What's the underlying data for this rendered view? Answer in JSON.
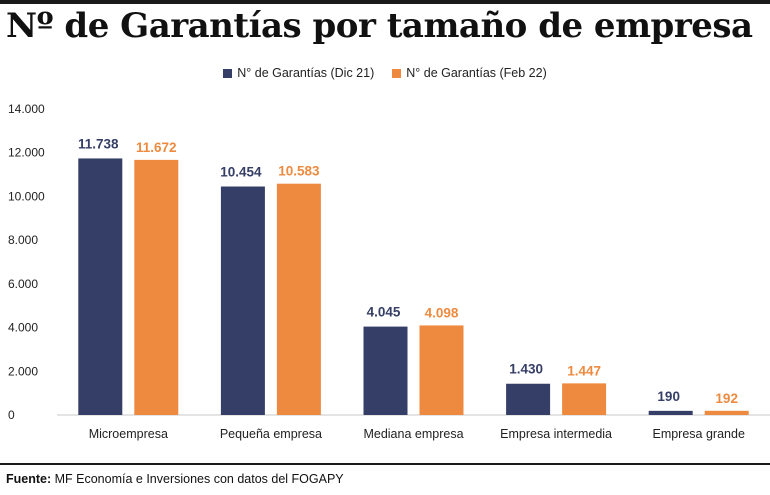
{
  "title": "Nº de Garantías por tamaño de empresa",
  "source": {
    "label": "Fuente:",
    "text": "MF Economía e Inversiones con datos del FOGAPY"
  },
  "colors": {
    "dic21": "#353e66",
    "feb22": "#ee8a3f"
  },
  "chart_data": {
    "type": "bar",
    "categories": [
      "Microempresa",
      "Pequeña empresa",
      "Mediana empresa",
      "Empresa intermedia",
      "Empresa grande"
    ],
    "series": [
      {
        "name": "N° de Garantías (Dic 21)",
        "values": [
          11738,
          10454,
          4045,
          1430,
          190
        ],
        "labels": [
          "11.738",
          "10.454",
          "4.045",
          "1.430",
          "190"
        ]
      },
      {
        "name": "N° de Garantías (Feb 22)",
        "values": [
          11672,
          10583,
          4098,
          1447,
          192
        ],
        "labels": [
          "11.672",
          "10.583",
          "4.098",
          "1.447",
          "192"
        ]
      }
    ],
    "ylim": [
      0,
      14000
    ],
    "yticks": [
      0,
      2000,
      4000,
      6000,
      8000,
      10000,
      12000,
      14000
    ],
    "ytick_labels": [
      "0",
      "2.000",
      "4.000",
      "6.000",
      "8.000",
      "10.000",
      "12.000",
      "14.000"
    ],
    "legend_position": "top-center",
    "grid": false
  }
}
